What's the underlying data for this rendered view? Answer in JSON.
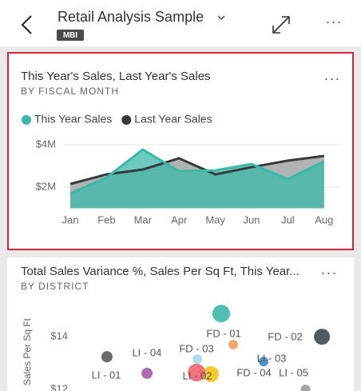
{
  "header": {
    "title": "Retail Analysis Sample",
    "badge": "MBI"
  },
  "chart_data": [
    {
      "type": "area",
      "title": "This Year's Sales, Last Year's Sales",
      "subtitle": "BY FISCAL MONTH",
      "categories": [
        "Jan",
        "Feb",
        "Mar",
        "Apr",
        "May",
        "Jun",
        "Jul",
        "Aug"
      ],
      "series": [
        {
          "name": "This Year Sales",
          "color": "#3bb8a8",
          "values": [
            1700000,
            2450000,
            3770000,
            2750000,
            2790000,
            3090000,
            2380000,
            3210000
          ]
        },
        {
          "name": "Last Year Sales",
          "color": "#353b3d",
          "values": [
            2150000,
            2600000,
            2830000,
            3360000,
            2600000,
            2940000,
            3250000,
            3470000
          ]
        }
      ],
      "ylim": [
        1000000,
        4400000
      ],
      "yticks": [
        {
          "value": 2000000,
          "label": "$2M"
        },
        {
          "value": 4000000,
          "label": "$4M"
        }
      ],
      "grid": true
    },
    {
      "type": "scatter",
      "title": "Total Sales Variance %, Sales Per Sq Ft, This Year...",
      "subtitle": "BY DISTRICT",
      "ylabel": "Sales Per Sq Ft",
      "labels": [
        null,
        "FD - 01",
        "FD - 02",
        "FD - 03",
        "FD - 04",
        "LI - 01",
        "LI - 02",
        "LI - 03",
        "LI - 04",
        "LI - 05"
      ],
      "x": [
        -0.28,
        0.36,
        5.07,
        -1.55,
        -0.83,
        -4.22,
        -1.59,
        1.97,
        -6.35,
        4.2
      ],
      "values": [
        14.88,
        13.7,
        14.0,
        13.15,
        12.58,
        12.61,
        12.64,
        13.06,
        13.24,
        12.0
      ],
      "sizes": [
        11,
        6,
        10,
        6,
        10,
        7,
        11,
        6,
        7,
        6
      ],
      "colors": [
        "#3bb8a8",
        "#f2a05a",
        "#3b4a51",
        "#a9d7ef",
        "#f5c518",
        "#a65ba6",
        "#f0636c",
        "#3a86c4",
        "#5a5a5a",
        "#9b9b9b"
      ],
      "xlim": [
        -8,
        6
      ],
      "ylim": [
        12,
        15.4
      ],
      "yticks": [
        {
          "value": 12,
          "label": "$12"
        },
        {
          "value": 14,
          "label": "$14"
        }
      ],
      "grid": false
    }
  ]
}
